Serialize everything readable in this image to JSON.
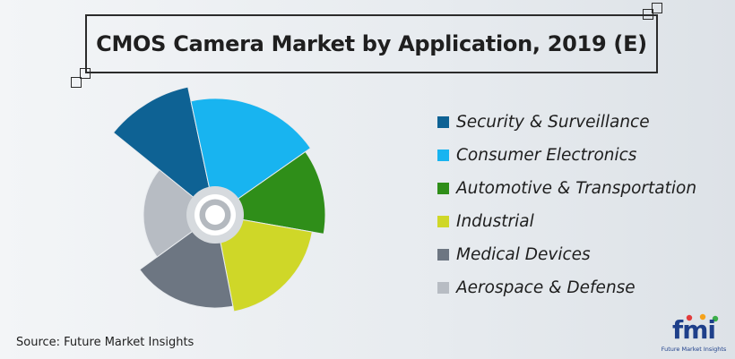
{
  "title": "CMOS Camera Market by Application, 2019 (E)",
  "source": "Source: Future Market Insights",
  "logo": {
    "mark": "fmi",
    "tagline": "Future Market Insights",
    "color": "#1e3f8a"
  },
  "chart_data": {
    "type": "pie",
    "title": "CMOS Camera Market by Application, 2019 (E)",
    "legend_position": "right",
    "series": [
      {
        "name": "Security & Surveillance",
        "color": "#0e6294"
      },
      {
        "name": "Consumer Electronics",
        "color": "#18b4f0"
      },
      {
        "name": "Automotive & Transportation",
        "color": "#2f8e19"
      },
      {
        "name": "Industrial",
        "color": "#cfd728"
      },
      {
        "name": "Medical Devices",
        "color": "#6d7682"
      },
      {
        "name": "Aerospace & Defense",
        "color": "#b7bcc3"
      }
    ]
  }
}
